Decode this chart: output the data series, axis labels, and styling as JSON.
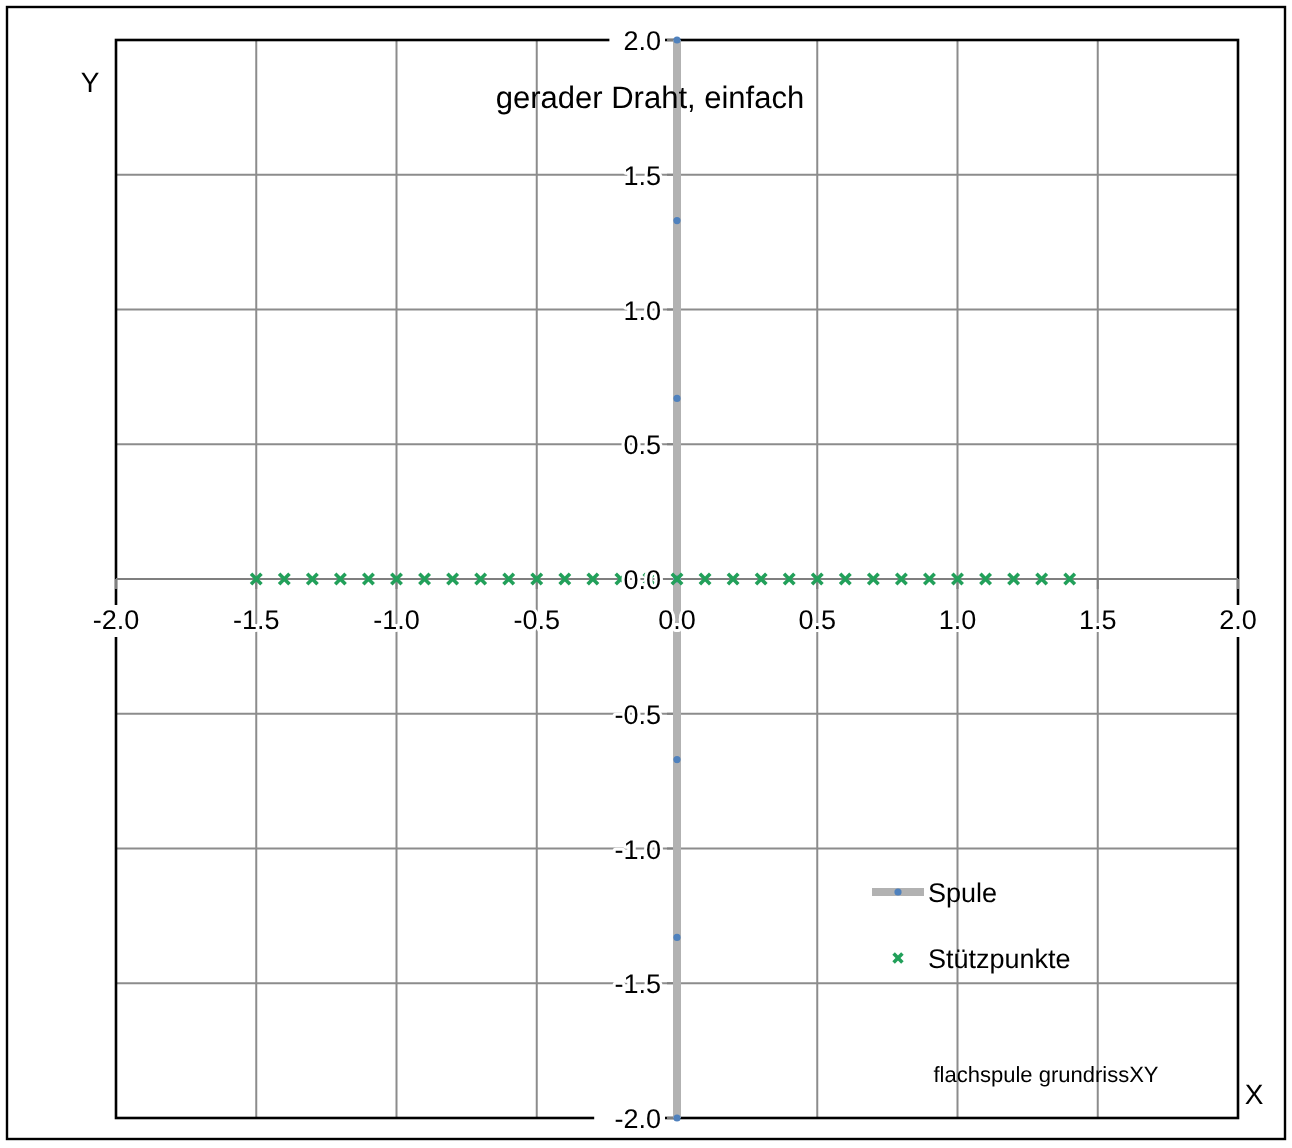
{
  "chart_data": {
    "type": "scatter",
    "title": "gerader Draht, einfach",
    "xlabel": "X",
    "ylabel": "Y",
    "annotations": [
      "flachspule grundrissXY"
    ],
    "xlim": [
      -2,
      2
    ],
    "ylim": [
      -2,
      2
    ],
    "xticks": [
      {
        "value": -2,
        "label": "-2.0"
      },
      {
        "value": -1.5,
        "label": "-1.5"
      },
      {
        "value": -1,
        "label": "-1.0"
      },
      {
        "value": -0.5,
        "label": "-0.5"
      },
      {
        "value": 0,
        "label": "0.0"
      },
      {
        "value": 0.5,
        "label": "0.5"
      },
      {
        "value": 1,
        "label": "1.0"
      },
      {
        "value": 1.5,
        "label": "1.5"
      },
      {
        "value": 2,
        "label": "2.0"
      }
    ],
    "yticks": [
      {
        "value": -2,
        "label": "-2.0"
      },
      {
        "value": -1.5,
        "label": "-1.5"
      },
      {
        "value": -1,
        "label": "-1.0"
      },
      {
        "value": -0.5,
        "label": "-0.5"
      },
      {
        "value": 0,
        "label": "0.0"
      },
      {
        "value": 0.5,
        "label": "0.5"
      },
      {
        "value": 1,
        "label": "1.0"
      },
      {
        "value": 1.5,
        "label": "1.5"
      },
      {
        "value": 2,
        "label": "2.0"
      }
    ],
    "grid": true,
    "legend": "bottom right",
    "series": [
      {
        "name": "Spule",
        "type": "line",
        "color": "#b2b2b2",
        "colors": [
          "#4f81bd",
          "#4f81bd",
          "#4f81bd",
          "#4f81bd",
          "#4f81bd",
          "#4f81bd",
          "#4f81bd"
        ],
        "marker": "circle",
        "x": [
          0,
          0,
          0,
          0,
          0,
          0,
          0
        ],
        "values": [
          2,
          1.33,
          0.67,
          0,
          -0.67,
          -1.33,
          -2
        ]
      },
      {
        "name": "Stützpunkte",
        "type": "scatter",
        "color": "#22a05a",
        "marker": "cross",
        "x": [
          -1.5,
          -1.4,
          -1.3,
          -1.2,
          -1.1,
          -1,
          -0.9,
          -0.8,
          -0.7,
          -0.6,
          -0.5,
          -0.4,
          -0.3,
          -0.2,
          -0.1,
          0,
          0.1,
          0.2,
          0.3,
          0.4,
          0.5,
          0.6,
          0.7,
          0.8,
          0.9,
          1,
          1.1,
          1.2,
          1.3,
          1.4
        ],
        "values": [
          0,
          0,
          0,
          0,
          0,
          0,
          0,
          0,
          0,
          0,
          0,
          0,
          0,
          0,
          0,
          0,
          0,
          0,
          0,
          0,
          0,
          0,
          0,
          0,
          0,
          0,
          0,
          0,
          0,
          0
        ]
      }
    ]
  }
}
